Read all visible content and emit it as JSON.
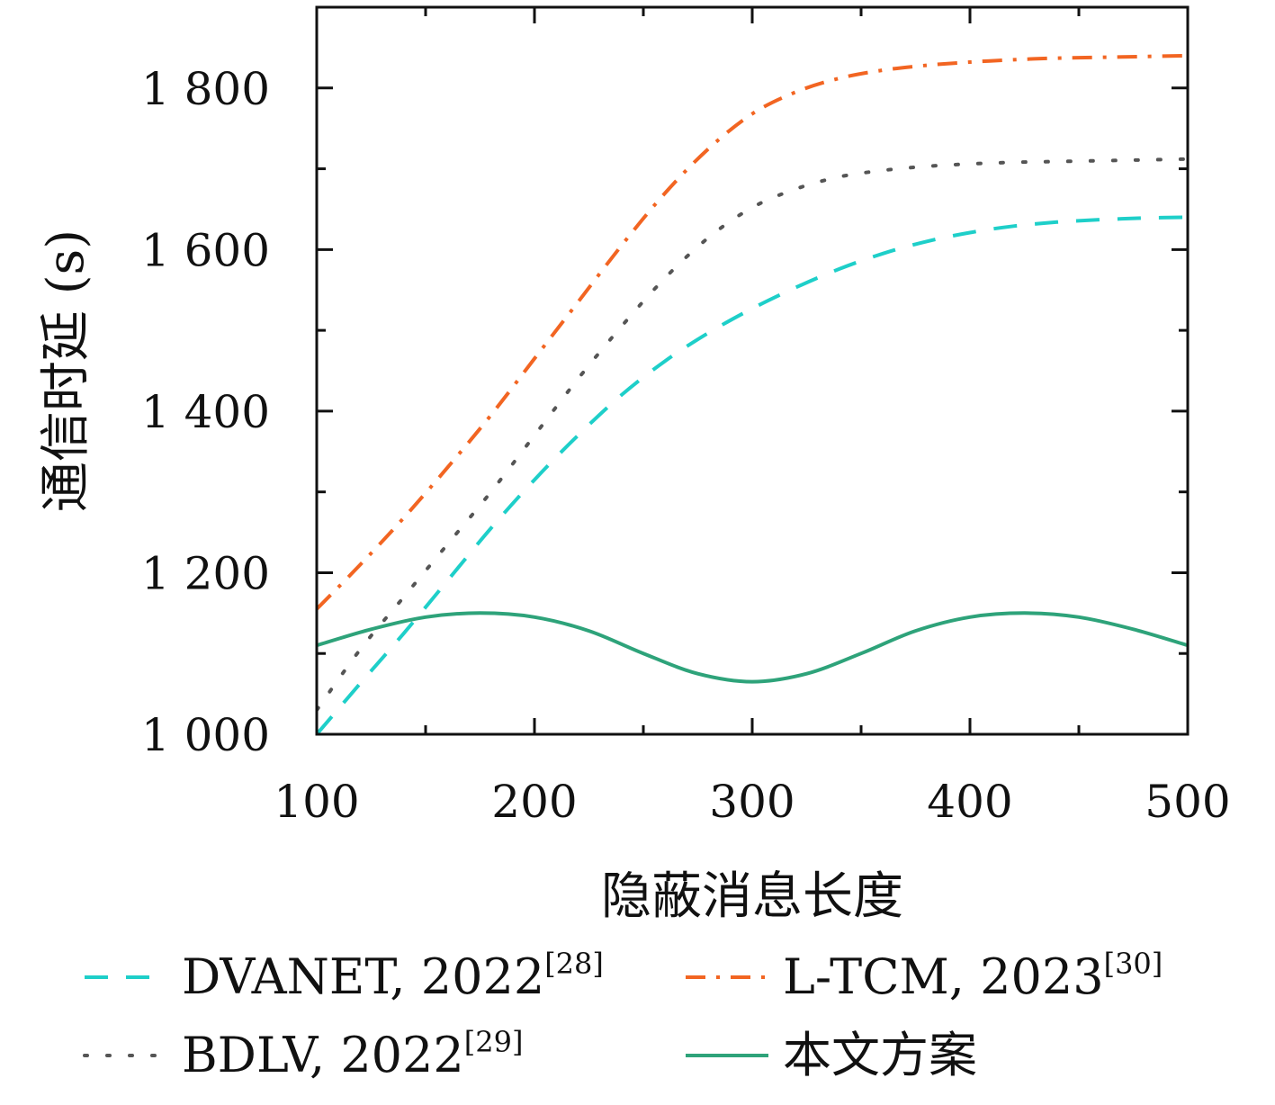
{
  "chart_data": {
    "type": "line",
    "title": "",
    "xlabel": "隐蔽消息长度",
    "ylabel": "通信时延 (s)",
    "xlim": [
      100,
      500
    ],
    "ylim": [
      1000,
      1900
    ],
    "x_ticks": [
      100,
      200,
      300,
      400,
      500
    ],
    "x_tick_labels": [
      "100",
      "200",
      "300",
      "400",
      "500"
    ],
    "y_ticks": [
      1000,
      1200,
      1400,
      1600,
      1800
    ],
    "y_tick_labels": [
      "1 000",
      "1 200",
      "1 400",
      "1 600",
      "1 800"
    ],
    "grid": false,
    "legend_position": "bottom",
    "series": [
      {
        "name": "DVANET, 2022",
        "ref": "[28]",
        "color": "#1ecfc9",
        "style": "dashed",
        "x": [
          100,
          120,
          140,
          160,
          180,
          200,
          220,
          240,
          260,
          280,
          300,
          320,
          340,
          360,
          380,
          400,
          420,
          440,
          460,
          480,
          500
        ],
        "y": [
          1000,
          1063,
          1125,
          1190,
          1255,
          1315,
          1370,
          1420,
          1462,
          1497,
          1527,
          1553,
          1576,
          1595,
          1610,
          1621,
          1629,
          1634,
          1637,
          1639,
          1640
        ]
      },
      {
        "name": "BDLV, 2022",
        "ref": "[29]",
        "color": "#555555",
        "style": "dotted",
        "x": [
          100,
          120,
          140,
          160,
          180,
          200,
          220,
          240,
          260,
          280,
          300,
          320,
          340,
          360,
          380,
          400,
          420,
          440,
          460,
          480,
          500
        ],
        "y": [
          1030,
          1105,
          1170,
          1235,
          1300,
          1370,
          1440,
          1505,
          1565,
          1615,
          1652,
          1675,
          1690,
          1698,
          1703,
          1706,
          1708,
          1709,
          1710,
          1711,
          1712
        ]
      },
      {
        "name": "L-TCM, 2023",
        "ref": "[30]",
        "color": "#f26522",
        "style": "dashdot",
        "x": [
          100,
          120,
          140,
          160,
          180,
          200,
          220,
          240,
          260,
          280,
          300,
          320,
          340,
          360,
          380,
          400,
          420,
          440,
          460,
          480,
          500
        ],
        "y": [
          1155,
          1210,
          1268,
          1330,
          1395,
          1465,
          1535,
          1605,
          1670,
          1725,
          1768,
          1795,
          1812,
          1822,
          1828,
          1832,
          1835,
          1837,
          1838,
          1839,
          1840
        ]
      },
      {
        "name": "本文方案",
        "ref": "",
        "color": "#2ea37a",
        "style": "solid",
        "x": [
          100,
          125,
          150,
          175,
          200,
          225,
          250,
          275,
          300,
          325,
          350,
          375,
          400,
          425,
          450,
          475,
          500
        ],
        "y": [
          1110,
          1130,
          1145,
          1150,
          1145,
          1128,
          1100,
          1075,
          1065,
          1075,
          1100,
          1128,
          1145,
          1150,
          1145,
          1130,
          1110
        ]
      }
    ]
  }
}
